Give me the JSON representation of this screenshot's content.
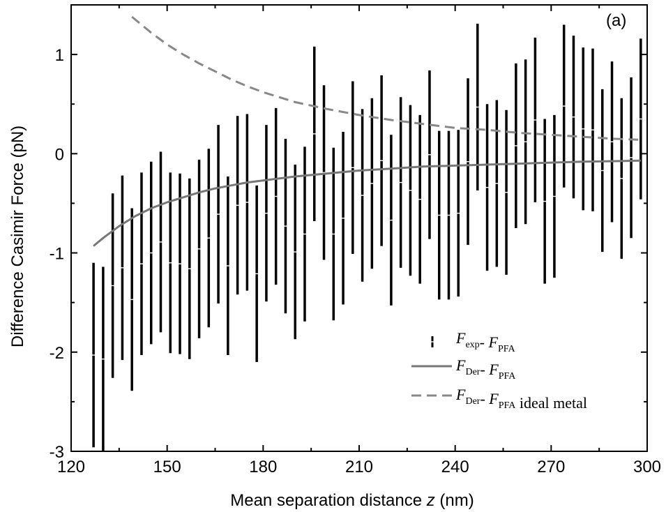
{
  "chart_data": {
    "type": "line",
    "panel_label": "(a)",
    "xlabel": "Mean separation distance ",
    "xlabel_var": "z",
    "xlabel_unit": " (nm)",
    "ylabel": "Difference Casimir Force (pN)",
    "xlim": [
      120,
      300
    ],
    "ylim": [
      -3,
      1.5
    ],
    "x_ticks": [
      120,
      150,
      180,
      210,
      240,
      270,
      300
    ],
    "y_ticks": [
      -3,
      -2,
      -1,
      0,
      1
    ],
    "grid": false,
    "legend_position": "lower-right",
    "legend": [
      {
        "F": "F",
        "sub1": "exp",
        "dash": "- ",
        "F2": "F",
        "sub2": "PFA",
        "suffix": ""
      },
      {
        "F": "F",
        "sub1": "Der",
        "dash": "- ",
        "F2": "F",
        "sub2": "PFA",
        "suffix": ""
      },
      {
        "F": "F",
        "sub1": "Der",
        "dash": "- ",
        "F2": "F",
        "sub2": "PFA",
        "suffix": " ideal metal"
      }
    ],
    "colors": {
      "data": "#000000",
      "der_line": "#777777",
      "ideal_line": "#888888"
    },
    "series": [
      {
        "style": "errorbar",
        "x": [
          127,
          130,
          133,
          136,
          139,
          142,
          145,
          148,
          151,
          154,
          157,
          160,
          163,
          166,
          169,
          172,
          175,
          178,
          181,
          184,
          187,
          190,
          193,
          196,
          199,
          202,
          205,
          208,
          211,
          214,
          217,
          220,
          223,
          226,
          229,
          232,
          235,
          238,
          241,
          244,
          247,
          250,
          253,
          256,
          259,
          262,
          265,
          268,
          271,
          274,
          277,
          280,
          283,
          286,
          289,
          292,
          295,
          298
        ],
        "y": [
          -2.03,
          -2.07,
          -1.33,
          -1.15,
          -1.47,
          -1.11,
          -1.0,
          -0.89,
          -1.1,
          -1.11,
          -1.16,
          -0.96,
          -0.85,
          -0.61,
          -1.13,
          -0.52,
          -0.49,
          -1.21,
          -0.6,
          -0.43,
          -0.73,
          -0.99,
          -0.81,
          0.2,
          -0.19,
          -0.81,
          -0.65,
          -0.14,
          -0.42,
          -0.3,
          -0.07,
          -0.67,
          -0.29,
          -0.37,
          -0.46,
          -0.01,
          -0.62,
          -0.62,
          -0.6,
          -0.08,
          0.47,
          -0.34,
          -0.3,
          -0.39,
          0.08,
          0.12,
          0.34,
          -0.48,
          -0.43,
          0.48,
          0.37,
          0.25,
          0.24,
          -0.17,
          0.12,
          -0.25,
          -0.04,
          0.35
        ],
        "yerr": [
          0.93,
          0.93,
          0.93,
          0.93,
          0.92,
          0.92,
          0.92,
          0.91,
          0.91,
          0.91,
          0.91,
          0.9,
          0.9,
          0.9,
          0.9,
          0.9,
          0.89,
          0.89,
          0.89,
          0.89,
          0.88,
          0.88,
          0.88,
          0.88,
          0.88,
          0.87,
          0.87,
          0.87,
          0.87,
          0.86,
          0.86,
          0.86,
          0.86,
          0.86,
          0.85,
          0.85,
          0.85,
          0.85,
          0.84,
          0.84,
          0.84,
          0.84,
          0.84,
          0.83,
          0.83,
          0.83,
          0.83,
          0.83,
          0.82,
          0.82,
          0.82,
          0.82,
          0.82,
          0.82,
          0.81,
          0.81,
          0.81,
          0.81
        ]
      },
      {
        "style": "solid",
        "x": [
          127,
          130,
          135,
          140,
          145,
          150,
          155,
          160,
          165,
          170,
          175,
          180,
          190,
          200,
          210,
          220,
          230,
          240,
          250,
          260,
          270,
          280,
          290,
          298
        ],
        "y": [
          -0.93,
          -0.85,
          -0.73,
          -0.63,
          -0.55,
          -0.49,
          -0.44,
          -0.39,
          -0.35,
          -0.32,
          -0.29,
          -0.27,
          -0.23,
          -0.2,
          -0.17,
          -0.15,
          -0.13,
          -0.12,
          -0.11,
          -0.1,
          -0.09,
          -0.08,
          -0.075,
          -0.07
        ]
      },
      {
        "style": "dashed",
        "x": [
          139,
          145,
          150,
          155,
          160,
          165,
          170,
          175,
          180,
          190,
          200,
          210,
          220,
          230,
          240,
          250,
          260,
          270,
          280,
          290,
          298
        ],
        "y": [
          1.38,
          1.22,
          1.1,
          1.0,
          0.91,
          0.83,
          0.75,
          0.68,
          0.62,
          0.52,
          0.45,
          0.39,
          0.34,
          0.3,
          0.26,
          0.24,
          0.21,
          0.19,
          0.17,
          0.15,
          0.14
        ]
      }
    ]
  }
}
